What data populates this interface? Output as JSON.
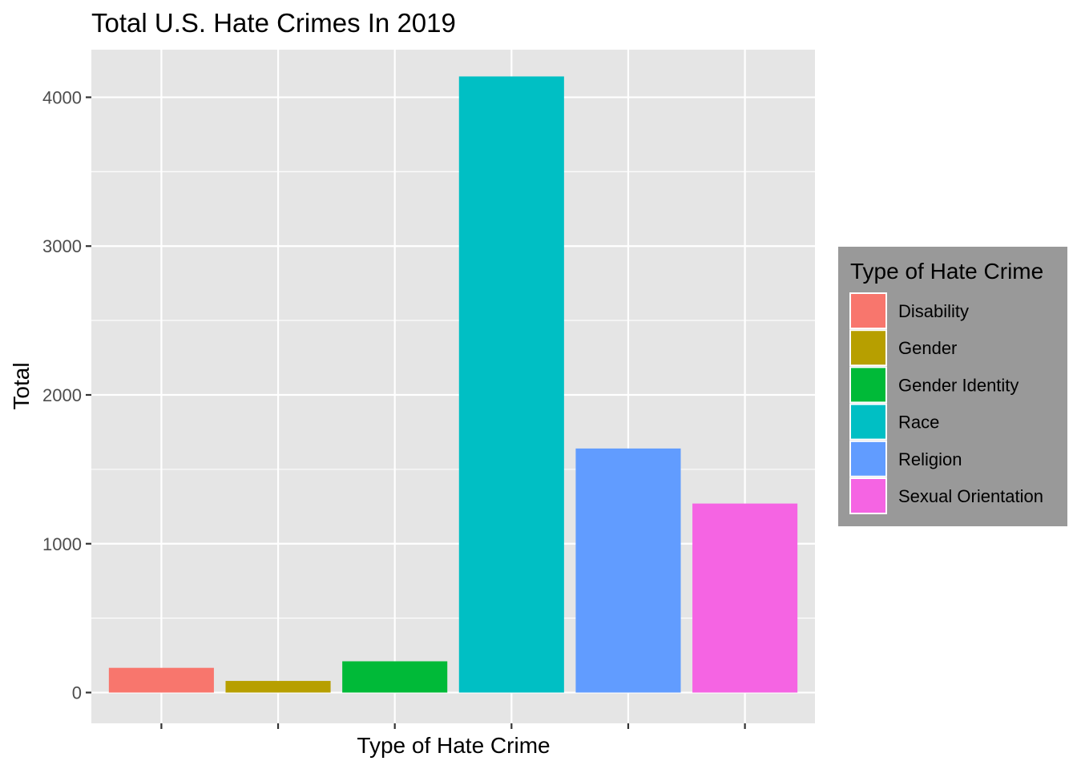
{
  "chart_data": {
    "type": "bar",
    "title": "Total U.S. Hate Crimes In 2019",
    "xlabel": "Type of Hate Crime",
    "ylabel": "Total",
    "categories": [
      "Disability",
      "Gender",
      "Gender Identity",
      "Race",
      "Religion",
      "Sexual Orientation"
    ],
    "values": [
      166,
      78,
      210,
      4140,
      1640,
      1270
    ],
    "colors": [
      "#F8766D",
      "#B79F00",
      "#00BA38",
      "#00BFC4",
      "#619CFF",
      "#F564E3"
    ],
    "ylim": [
      -207,
      4320
    ],
    "yticks": [
      0,
      1000,
      2000,
      3000,
      4000
    ],
    "x_tick_labels": false,
    "grid": true,
    "panel_background": "#E5E5E5",
    "grid_color": "#FFFFFF",
    "legend": {
      "title": "Type of Hate Crime",
      "position": "right",
      "background": "#999999",
      "items": [
        "Disability",
        "Gender",
        "Gender Identity",
        "Race",
        "Religion",
        "Sexual Orientation"
      ]
    }
  }
}
